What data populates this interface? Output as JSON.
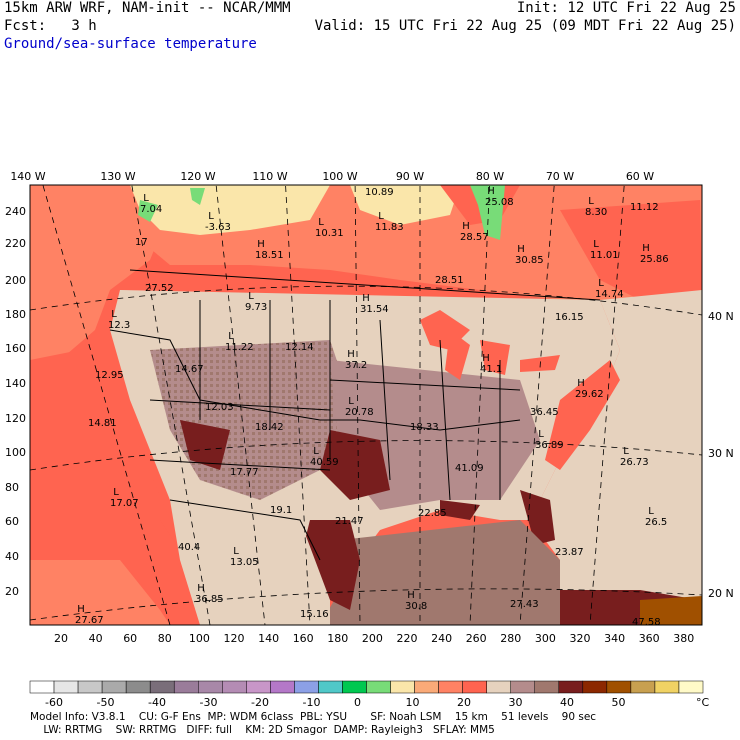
{
  "header": {
    "model": "15km ARW WRF, NAM-init -- NCAR/MMM",
    "init": "Init: 12 UTC Fri 22 Aug 25",
    "fcst": "Fcst:   3 h",
    "valid": "Valid: 15 UTC Fri 22 Aug 25 (09 MDT Fri 22 Aug 25)",
    "field": "Ground/sea-surface temperature"
  },
  "axes": {
    "top_lon": [
      "140 W",
      "130 W",
      "120 W",
      "110 W",
      "100 W",
      "90 W",
      "80 W",
      "70 W",
      "60 W"
    ],
    "left_y": [
      "240",
      "220",
      "200",
      "180",
      "160",
      "140",
      "120",
      "100",
      "80",
      "60",
      "40",
      "20"
    ],
    "bottom_x": [
      "20",
      "40",
      "60",
      "80",
      "100",
      "120",
      "140",
      "160",
      "180",
      "200",
      "220",
      "240",
      "260",
      "280",
      "300",
      "320",
      "340",
      "360",
      "380"
    ],
    "right_lat": [
      "40 N",
      "30 N",
      "20 N"
    ]
  },
  "map_labels": [
    {
      "t": "7.04",
      "v": "L"
    },
    {
      "t": "-3.63",
      "v": "L"
    },
    {
      "t": "10.31",
      "v": "L"
    },
    {
      "t": "10.89",
      "v": ""
    },
    {
      "t": "11.83",
      "v": "L"
    },
    {
      "t": "28.57",
      "v": "H"
    },
    {
      "t": "25.08",
      "v": "H"
    },
    {
      "t": "8.30",
      "v": "L"
    },
    {
      "t": "11.12",
      "v": ""
    },
    {
      "t": "17",
      "v": ""
    },
    {
      "t": "18.51",
      "v": "H"
    },
    {
      "t": "11.01",
      "v": "L"
    },
    {
      "t": "30.85",
      "v": "H"
    },
    {
      "t": "25.86",
      "v": "H"
    },
    {
      "t": "27.52",
      "v": ""
    },
    {
      "t": "28.51",
      "v": ""
    },
    {
      "t": "14.74",
      "v": "L"
    },
    {
      "t": "9.73",
      "v": "L"
    },
    {
      "t": "31.54",
      "v": "H"
    },
    {
      "t": "12.3",
      "v": "L"
    },
    {
      "t": "16.15",
      "v": ""
    },
    {
      "t": "11.22",
      "v": "L"
    },
    {
      "t": "12.14",
      "v": ""
    },
    {
      "t": "37.2",
      "v": "H"
    },
    {
      "t": "14.67",
      "v": ""
    },
    {
      "t": "12.95",
      "v": ""
    },
    {
      "t": "41.1",
      "v": "H"
    },
    {
      "t": "29.62",
      "v": "H"
    },
    {
      "t": "12.03",
      "v": ""
    },
    {
      "t": "20.78",
      "v": "L"
    },
    {
      "t": "36.45",
      "v": ""
    },
    {
      "t": "14.81",
      "v": ""
    },
    {
      "t": "18.42",
      "v": ""
    },
    {
      "t": "18.33",
      "v": ""
    },
    {
      "t": "36.89",
      "v": "L"
    },
    {
      "t": "40.59",
      "v": "L"
    },
    {
      "t": "26.73",
      "v": "L"
    },
    {
      "t": "17.77",
      "v": ""
    },
    {
      "t": "41.09",
      "v": ""
    },
    {
      "t": "17.07",
      "v": "L"
    },
    {
      "t": "19.1",
      "v": ""
    },
    {
      "t": "21.47",
      "v": ""
    },
    {
      "t": "22.85",
      "v": ""
    },
    {
      "t": "26.5",
      "v": "L"
    },
    {
      "t": "40.4",
      "v": ""
    },
    {
      "t": "23.87",
      "v": ""
    },
    {
      "t": "13.05",
      "v": "L"
    },
    {
      "t": "36.85",
      "v": "H"
    },
    {
      "t": "30.8",
      "v": "H"
    },
    {
      "t": "27.43",
      "v": ""
    },
    {
      "t": "15.16",
      "v": ""
    },
    {
      "t": "27.67",
      "v": "H"
    },
    {
      "t": "47.58",
      "v": ""
    }
  ],
  "colorbar": {
    "labels": [
      "-60",
      "-50",
      "-40",
      "-30",
      "-20",
      "-10",
      "0",
      "10",
      "20",
      "30",
      "40",
      "50"
    ],
    "unit": "°C",
    "colors": [
      "#ffffff",
      "#e6e6e6",
      "#c8c8c8",
      "#aaaaaa",
      "#8c8c8c",
      "#7a6e7a",
      "#9a7c9a",
      "#a888a8",
      "#b48cb4",
      "#c896c8",
      "#b478c8",
      "#8ca0e6",
      "#50c8c8",
      "#00c850",
      "#78dc78",
      "#fae6aa",
      "#faaa78",
      "#ff8264",
      "#ff6450",
      "#e6d2be",
      "#b48c8c",
      "#a0786e",
      "#781e1e",
      "#8c2800",
      "#a05000",
      "#c8a050",
      "#f0d264",
      "#fffac8"
    ]
  },
  "footer": {
    "line1": "Model Info: V3.8.1    CU: G-F Ens  MP: WDM 6class  PBL: YSU       SF: Noah LSM    15 km    51 levels    90 sec",
    "line2": "    LW: RRTMG    SW: RRTMG   DIFF: full    KM: 2D Smagor  DAMP: Rayleigh3   SFLAY: MM5"
  },
  "palette": {
    "ocean_warm": "#ff6450",
    "ocean_mild": "#ff8264",
    "land_tan": "#e6d2be",
    "land_mauve": "#b48c8c",
    "gulf": "#a0786e",
    "hot": "#781e1e",
    "cool": "#fae6aa",
    "green": "#78dc78"
  }
}
